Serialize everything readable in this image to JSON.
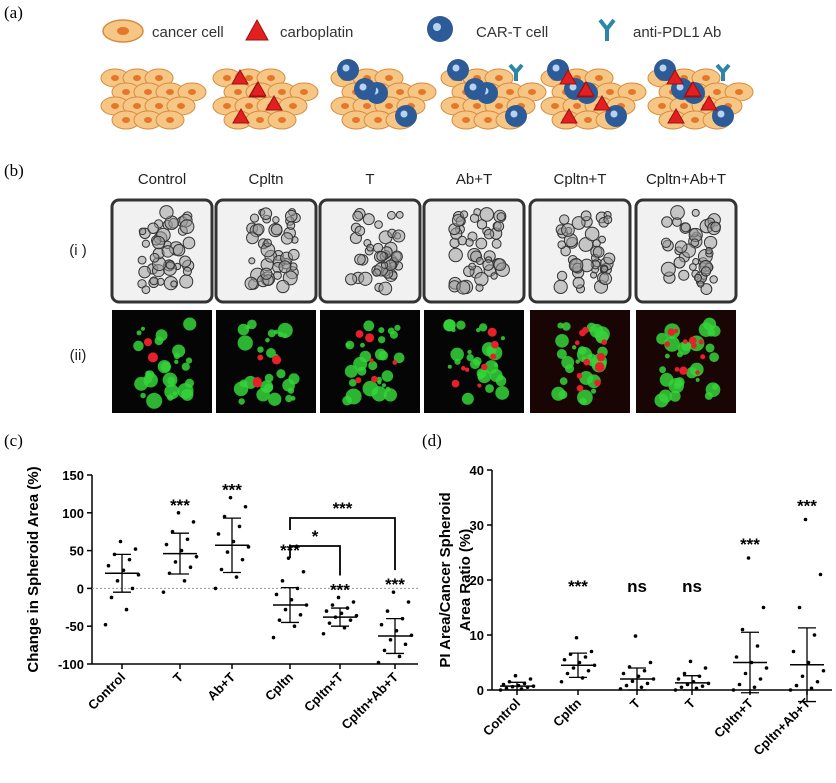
{
  "panels": {
    "a": {
      "label": "(a)",
      "legend": [
        "cancer cell",
        "carboplatin",
        "CAR-T cell",
        "anti-PDL1 Ab"
      ]
    },
    "b": {
      "label": "(b)",
      "columns": [
        "Control",
        "Cpltn",
        "T",
        "Ab+T",
        "Cpltn+T",
        "Cpltn+Ab+T"
      ],
      "rows": [
        "(i )",
        "(ii)"
      ]
    },
    "c": {
      "label": "(c)"
    },
    "d": {
      "label": "(d)"
    }
  },
  "chart_data": [
    {
      "type": "dot_plot",
      "ylabel": "Change in  Spheroid Area (%)",
      "categories": [
        "Control",
        "T",
        "Ab+T",
        "Cpltn",
        "Cpltn+T",
        "Cpltn+Ab+T"
      ],
      "points": [
        [
          -48,
          -28,
          -12,
          0,
          10,
          18,
          24,
          30,
          38,
          45,
          52,
          62
        ],
        [
          -5,
          10,
          20,
          28,
          35,
          42,
          50,
          58,
          65,
          75,
          88,
          100
        ],
        [
          0,
          15,
          25,
          38,
          48,
          55,
          62,
          72,
          82,
          95,
          108,
          120
        ],
        [
          -65,
          -50,
          -42,
          -35,
          -28,
          -22,
          -15,
          -8,
          0,
          10,
          22,
          40
        ],
        [
          -60,
          -52,
          -46,
          -42,
          -38,
          -36,
          -33,
          -30,
          -26,
          -22,
          -18,
          -12
        ],
        [
          -98,
          -90,
          -82,
          -74,
          -68,
          -62,
          -56,
          -48,
          -40,
          -30,
          -18,
          -5
        ]
      ],
      "means": [
        20,
        46,
        57,
        -22,
        -38,
        -63
      ],
      "sd": [
        25,
        27,
        36,
        23,
        12,
        23
      ],
      "significance": [
        null,
        "***",
        "***",
        "***",
        "***",
        "***"
      ],
      "comparisons": [
        {
          "from": "Cpltn",
          "to": "Cpltn+T",
          "label": "*"
        },
        {
          "from": "Cpltn",
          "to": "Cpltn+Ab+T",
          "label": "***"
        }
      ],
      "ylim": [
        -100,
        150
      ],
      "yticks": [
        -100,
        -50,
        0,
        50,
        100,
        150
      ],
      "zero_line": true,
      "color": "#000000"
    },
    {
      "type": "dot_plot",
      "ylabel": [
        "PI Area/Cancer Spheroid",
        "Area Ratio (%)"
      ],
      "categories": [
        "Control",
        "Cpltn",
        "T",
        "T",
        "Cpltn+T",
        "Cpltn+Ab+T"
      ],
      "points": [
        [
          0,
          0.2,
          0.3,
          0.5,
          0.6,
          0.7,
          0.8,
          1.0,
          1.2,
          1.5,
          2.0,
          2.6
        ],
        [
          1.5,
          2.2,
          3,
          3.5,
          4,
          4.5,
          5,
          5.5,
          6,
          6.5,
          7,
          9.5
        ],
        [
          0.2,
          0.5,
          0.8,
          1.2,
          1.6,
          2,
          2.5,
          3,
          3.5,
          4.2,
          5,
          9.8
        ],
        [
          0,
          0.3,
          0.5,
          0.7,
          1,
          1.2,
          1.5,
          2,
          2.5,
          3,
          4,
          5.2
        ],
        [
          0,
          0.5,
          1,
          2,
          3,
          4,
          5,
          6,
          8,
          11,
          15,
          24
        ],
        [
          0,
          0.3,
          0.8,
          1.5,
          2.5,
          3.5,
          5,
          7,
          10,
          15,
          21,
          31
        ]
      ],
      "means": [
        0.7,
        4.5,
        2.0,
        1.3,
        5.0,
        4.6
      ],
      "sd": [
        0.7,
        2.2,
        2.0,
        1.3,
        5.5,
        6.7
      ],
      "significance": [
        null,
        "***",
        "ns",
        "ns",
        "***",
        "***"
      ],
      "ylim": [
        0,
        40
      ],
      "yticks": [
        0,
        10,
        20,
        30,
        40
      ],
      "zero_line": false,
      "color": "#000000"
    }
  ]
}
